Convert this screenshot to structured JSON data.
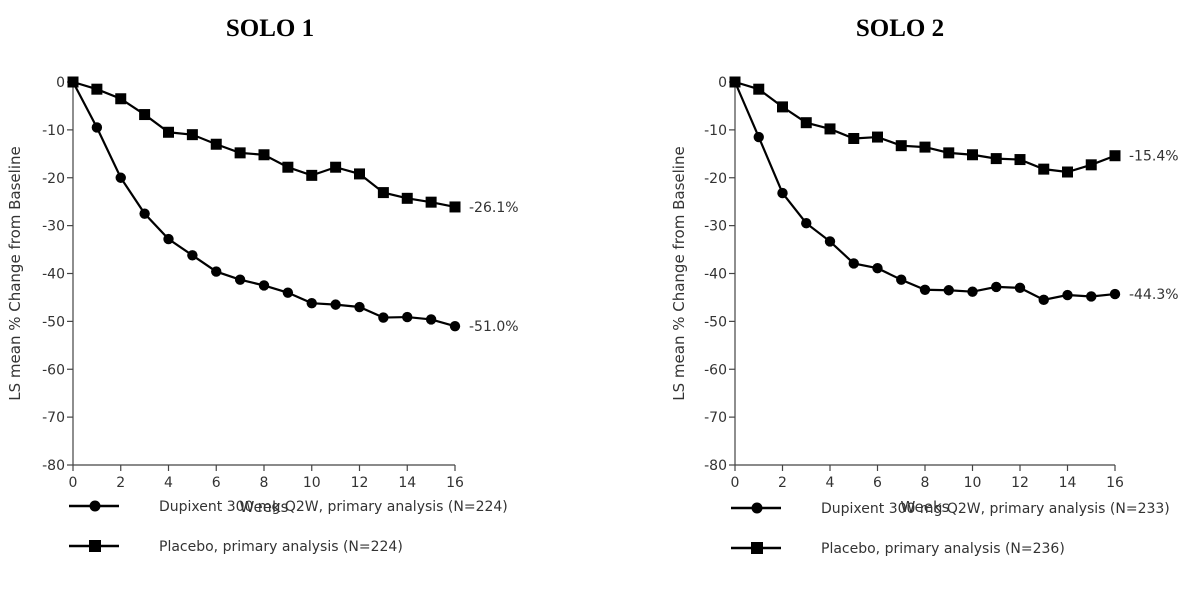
{
  "chart_data": [
    {
      "type": "line",
      "title": "SOLO 1",
      "xlabel": "Weeks",
      "ylabel": "LS mean % Change from Baseline",
      "xlim": [
        0,
        16
      ],
      "ylim": [
        -80,
        0
      ],
      "x_ticks": [
        0,
        2,
        4,
        6,
        8,
        10,
        12,
        14,
        16
      ],
      "y_ticks": [
        0,
        -10,
        -20,
        -30,
        -40,
        -50,
        -60,
        -70,
        -80
      ],
      "grid": false,
      "legend_position": "bottom",
      "x": [
        0,
        1,
        2,
        3,
        4,
        5,
        6,
        7,
        8,
        9,
        10,
        11,
        12,
        13,
        14,
        15,
        16
      ],
      "series": [
        {
          "name": "Dupixent 300 mg Q2W, primary analysis (N=224)",
          "marker": "circle",
          "end_label": "-51.0%",
          "values": [
            0,
            -9.5,
            -20,
            -27.5,
            -32.8,
            -36.2,
            -39.6,
            -41.3,
            -42.5,
            -44,
            -46.2,
            -46.5,
            -47,
            -49.2,
            -49.1,
            -49.6,
            -51
          ]
        },
        {
          "name": "Placebo, primary analysis (N=224)",
          "marker": "square",
          "end_label": "-26.1%",
          "values": [
            0,
            -1.5,
            -3.5,
            -6.8,
            -10.5,
            -11,
            -13,
            -14.8,
            -15.2,
            -17.8,
            -19.5,
            -17.8,
            -19.2,
            -23.1,
            -24.3,
            -25.1,
            -26.1
          ]
        }
      ]
    },
    {
      "type": "line",
      "title": "SOLO 2",
      "xlabel": "Weeks",
      "ylabel": "LS mean % Change from Baseline",
      "xlim": [
        0,
        16
      ],
      "ylim": [
        -80,
        0
      ],
      "x_ticks": [
        0,
        2,
        4,
        6,
        8,
        10,
        12,
        14,
        16
      ],
      "y_ticks": [
        0,
        -10,
        -20,
        -30,
        -40,
        -50,
        -60,
        -70,
        -80
      ],
      "grid": false,
      "legend_position": "bottom",
      "x": [
        0,
        1,
        2,
        3,
        4,
        5,
        6,
        7,
        8,
        9,
        10,
        11,
        12,
        13,
        14,
        15,
        16
      ],
      "series": [
        {
          "name": "Dupixent 300 mg Q2W, primary analysis (N=233)",
          "marker": "circle",
          "end_label": "-44.3%",
          "values": [
            0,
            -11.5,
            -23.2,
            -29.5,
            -33.3,
            -37.9,
            -38.9,
            -41.3,
            -43.4,
            -43.5,
            -43.8,
            -42.8,
            -43,
            -45.5,
            -44.5,
            -44.8,
            -44.3
          ]
        },
        {
          "name": "Placebo, primary analysis (N=236)",
          "marker": "square",
          "end_label": "-15.4%",
          "values": [
            0,
            -1.5,
            -5.2,
            -8.5,
            -9.8,
            -11.8,
            -11.5,
            -13.3,
            -13.6,
            -14.8,
            -15.2,
            -16,
            -16.2,
            -18.2,
            -18.8,
            -17.3,
            -15.4
          ]
        }
      ]
    }
  ]
}
